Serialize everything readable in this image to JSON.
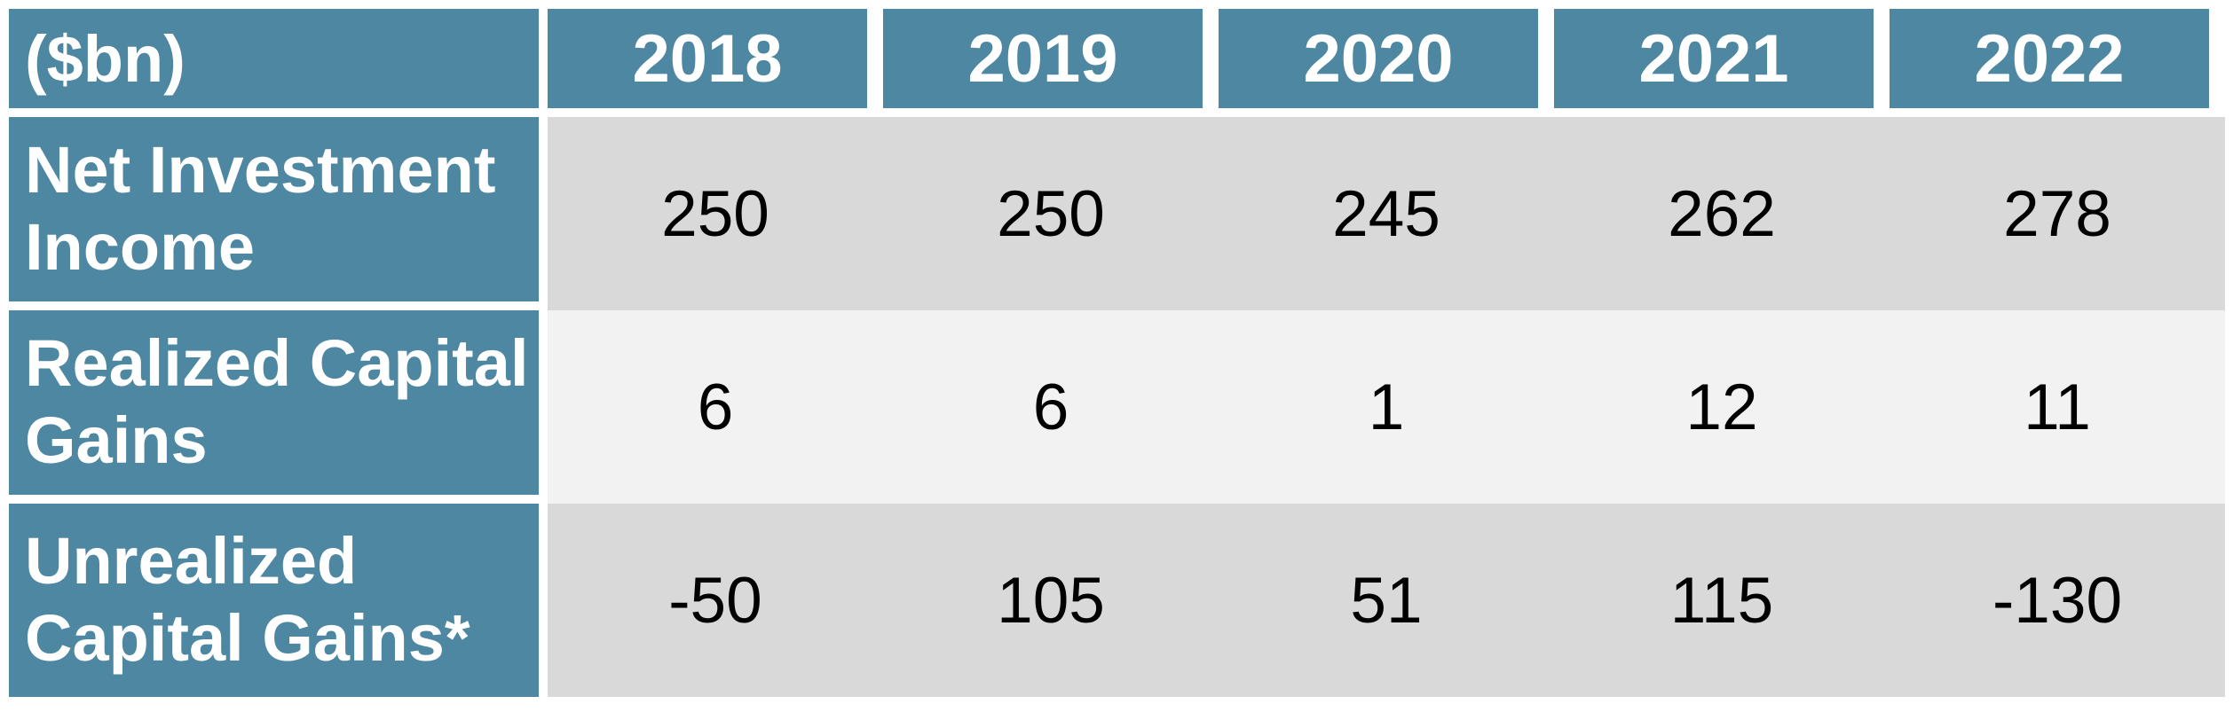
{
  "table": {
    "unit_header": "($bn)",
    "years": [
      "2018",
      "2019",
      "2020",
      "2021",
      "2022"
    ],
    "rows": [
      {
        "label": "Net Investment Income",
        "values": [
          "250",
          "250",
          "245",
          "262",
          "278"
        ]
      },
      {
        "label": "Realized Capital Gains",
        "values": [
          "6",
          "6",
          "1",
          "12",
          "11"
        ]
      },
      {
        "label": "Unrealized Capital Gains*",
        "values": [
          "-50",
          "105",
          "51",
          "115",
          "-130"
        ]
      }
    ],
    "colors": {
      "header_bg": "#4d87a1",
      "header_text": "#ffffff",
      "row_band_dark": "#d9d9d9",
      "row_band_light": "#f2f2f2",
      "value_text": "#000000",
      "gutter": "#ffffff"
    }
  },
  "chart_data": {
    "type": "table",
    "title": "",
    "unit_label": "($bn)",
    "categories": [
      "2018",
      "2019",
      "2020",
      "2021",
      "2022"
    ],
    "series": [
      {
        "name": "Net Investment Income",
        "values": [
          250,
          250,
          245,
          262,
          278
        ]
      },
      {
        "name": "Realized Capital Gains",
        "values": [
          6,
          6,
          1,
          12,
          11
        ]
      },
      {
        "name": "Unrealized Capital Gains*",
        "values": [
          -50,
          105,
          51,
          115,
          -130
        ]
      }
    ],
    "layout": {
      "legend": "none",
      "grid": "off",
      "row_shading": [
        "dark",
        "light",
        "dark"
      ],
      "header_position": "top-and-left"
    }
  }
}
